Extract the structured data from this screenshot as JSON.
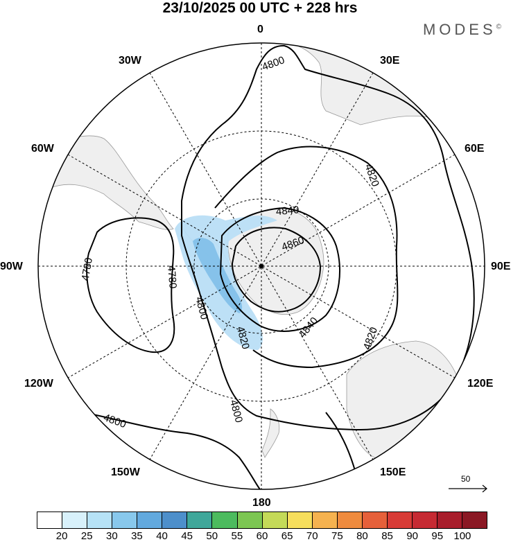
{
  "title": "23/10/2025  00 UTC  + 228 hrs",
  "brand": "MODES",
  "brand_mark": "©",
  "meridians": {
    "m0": "0",
    "m30e": "30E",
    "m60e": "60E",
    "m90e": "90E",
    "m120e": "120E",
    "m150e": "150E",
    "m180": "180",
    "m150w": "150W",
    "m120w": "120W",
    "m90w": "90W",
    "m60w": "60W",
    "m30w": "30W"
  },
  "contours": {
    "c1": "4800",
    "c2": "4820",
    "c3": "4840",
    "c4": "4860",
    "c5": "4780",
    "c6": "4780",
    "c7": "4800",
    "c8": "4820",
    "c9": "4840",
    "c10": "4820",
    "c11": "4800",
    "c12": "4800"
  },
  "vector_ref": "50",
  "colorbar": {
    "ticks": [
      "20",
      "25",
      "30",
      "35",
      "40",
      "45",
      "50",
      "55",
      "60",
      "65",
      "70",
      "75",
      "80",
      "85",
      "90",
      "95",
      "100"
    ],
    "colors": [
      "#ffffff",
      "#d8f1fb",
      "#b6e2f6",
      "#88c8ec",
      "#62a9de",
      "#4d8fcb",
      "#3fa79a",
      "#4cbb5e",
      "#7cc652",
      "#c4da58",
      "#f6de5c",
      "#f5b24f",
      "#ef8b3e",
      "#e6603a",
      "#d83b36",
      "#c62a33",
      "#a81d2b",
      "#8b1824"
    ]
  },
  "colors": {
    "land": "#efefef",
    "coast": "#9a9a9a",
    "jet": "#b9def6",
    "jet_core": "#7fbfe9"
  }
}
